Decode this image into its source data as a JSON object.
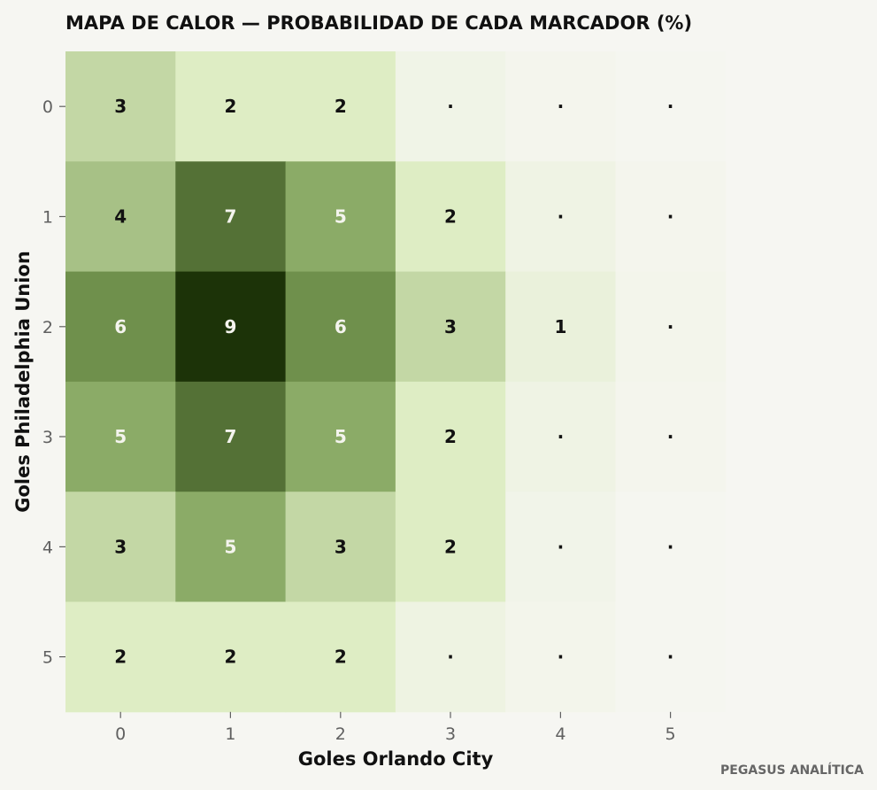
{
  "chart_data": {
    "type": "heatmap",
    "title": "MAPA DE CALOR — PROBABILIDAD DE CADA MARCADOR (%)",
    "xlabel": "Goles Orlando City",
    "ylabel": "Goles Philadelphia Union",
    "x_categories": [
      "0",
      "1",
      "2",
      "3",
      "4",
      "5"
    ],
    "y_categories": [
      "0",
      "1",
      "2",
      "3",
      "4",
      "5"
    ],
    "values": [
      [
        3,
        2,
        2,
        0.5,
        0.2,
        0.1
      ],
      [
        4,
        7,
        5,
        2,
        0.6,
        0.2
      ],
      [
        6,
        9,
        6,
        3,
        1,
        0.3
      ],
      [
        5,
        7,
        5,
        2,
        0.6,
        0.2
      ],
      [
        3,
        5,
        3,
        2,
        0.4,
        0.1
      ],
      [
        2,
        2,
        2,
        0.7,
        0.3,
        0.1
      ]
    ],
    "labels": [
      [
        "3",
        "2",
        "2",
        "·",
        "·",
        "·"
      ],
      [
        "4",
        "7",
        "5",
        "2",
        "·",
        "·"
      ],
      [
        "6",
        "9",
        "6",
        "3",
        "1",
        "·"
      ],
      [
        "5",
        "7",
        "5",
        "2",
        "·",
        "·"
      ],
      [
        "3",
        "5",
        "3",
        "2",
        "·",
        "·"
      ],
      [
        "2",
        "2",
        "2",
        "·",
        "·",
        "·"
      ]
    ],
    "colorscale": {
      "low": "#f6f6f2",
      "mid_low": "#dfedc5",
      "mid": "#80a25a",
      "high": "#1c3308"
    },
    "vmax": 9,
    "grid": false,
    "legend": "none"
  },
  "credit": "PEGASUS ANALÍTICA"
}
